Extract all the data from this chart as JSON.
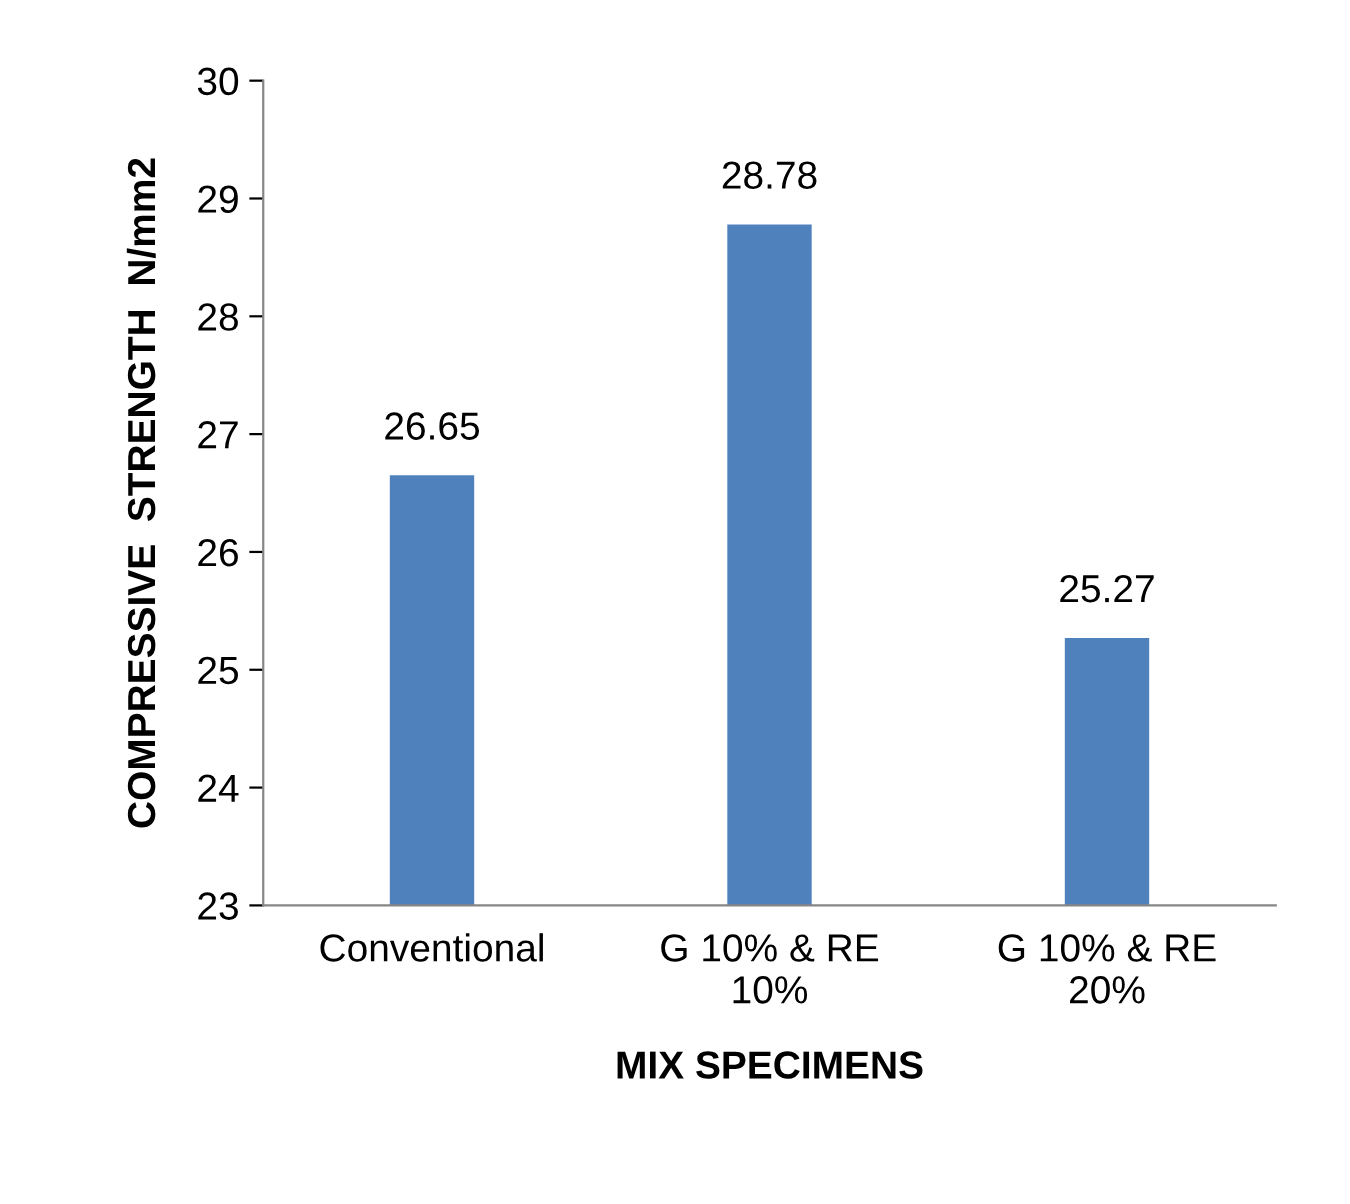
{
  "chart_data": {
    "type": "bar",
    "categories": [
      "Conventional",
      "G 10% & RE 10%",
      "G 10% & RE 20%"
    ],
    "values": [
      26.65,
      28.78,
      25.27
    ],
    "color": "#4f81bd",
    "ylim": [
      23,
      30
    ],
    "yticks": [
      23,
      24,
      25,
      26,
      27,
      28,
      29,
      30
    ],
    "xlabel": "MIX SPECIMENS",
    "ylabel": "COMPRESSIVE  STRENGTH  N/mm2",
    "data_labels": true,
    "grid": false,
    "legend": false
  }
}
